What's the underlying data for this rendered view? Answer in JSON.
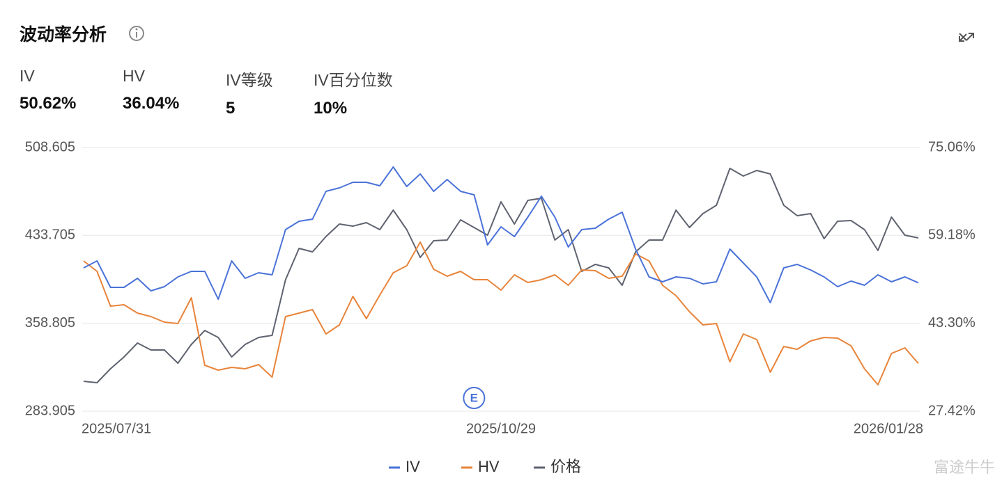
{
  "header": {
    "title": "波动率分析",
    "stats": [
      {
        "label": "IV",
        "value": "50.62%"
      },
      {
        "label": "HV",
        "value": "36.04%"
      },
      {
        "label": "IV等级",
        "value": "5"
      },
      {
        "label": "IV百分位数",
        "value": "10%"
      }
    ]
  },
  "watermark": "富途牛牛",
  "chart_data": {
    "type": "line",
    "categories": [
      "2025/07/31",
      null,
      null,
      null,
      null,
      null,
      null,
      null,
      null,
      null,
      null,
      null,
      null,
      null,
      null,
      null,
      null,
      null,
      null,
      null,
      null,
      null,
      null,
      null,
      null,
      null,
      null,
      null,
      null,
      null,
      null,
      "2025/10/29",
      null,
      null,
      null,
      null,
      null,
      null,
      null,
      null,
      null,
      null,
      null,
      null,
      null,
      null,
      null,
      null,
      null,
      null,
      null,
      null,
      null,
      null,
      null,
      null,
      null,
      null,
      null,
      null,
      null,
      null,
      "2026/01/28"
    ],
    "event_label": "E",
    "ylim": [
      283.905,
      508.605
    ],
    "yticks": [
      283.905,
      358.805,
      433.705,
      508.605
    ],
    "y2lim": [
      27.42,
      75.06
    ],
    "y2ticks": [
      {
        "value": 27.42,
        "label": "27.42%"
      },
      {
        "value": 43.3,
        "label": "43.30%"
      },
      {
        "value": 59.18,
        "label": "59.18%"
      },
      {
        "value": 75.06,
        "label": "75.06%"
      }
    ],
    "grid": true,
    "legend": "bottom",
    "series": [
      {
        "name": "IV",
        "color": "#4a72d8",
        "axis": "y2",
        "values": [
          53.31,
          54.57,
          49.79,
          49.79,
          51.43,
          49.17,
          49.92,
          51.68,
          52.69,
          52.69,
          47.66,
          54.57,
          51.43,
          52.43,
          52.06,
          60.23,
          61.74,
          62.11,
          67.14,
          67.77,
          68.78,
          68.78,
          68.15,
          71.54,
          68.02,
          70.28,
          67.14,
          69.28,
          67.14,
          66.51,
          57.46,
          60.73,
          58.97,
          62.49,
          66.26,
          62.49,
          57.09,
          60.23,
          60.48,
          62.11,
          63.37,
          56.71,
          51.68,
          50.8,
          51.68,
          51.43,
          50.42,
          50.8,
          56.71,
          54.19,
          51.68,
          47.03,
          53.31,
          53.94,
          52.94,
          51.68,
          49.92,
          50.93,
          50.17,
          52.06,
          50.8,
          51.68,
          50.62
        ]
      },
      {
        "name": "HV",
        "color": "#e8843a",
        "axis": "y2",
        "values": [
          54.57,
          52.69,
          46.4,
          46.65,
          45.14,
          44.52,
          43.51,
          43.26,
          47.91,
          35.72,
          34.84,
          35.34,
          35.09,
          35.84,
          33.58,
          44.52,
          45.14,
          45.77,
          41.37,
          43.01,
          48.16,
          44.14,
          48.41,
          52.43,
          53.69,
          57.97,
          53.06,
          51.81,
          52.69,
          51.18,
          51.18,
          49.29,
          52.06,
          50.67,
          51.18,
          52.06,
          50.17,
          52.94,
          52.81,
          51.43,
          51.81,
          55.83,
          54.57,
          50.17,
          48.29,
          45.4,
          43.01,
          43.26,
          36.34,
          41.37,
          40.37,
          34.46,
          39.11,
          38.61,
          40.12,
          40.74,
          40.62,
          39.24,
          35.09,
          32.2,
          37.85,
          38.86,
          36.04
        ]
      },
      {
        "name": "价格",
        "color": "#5f6370",
        "values": [
          309.4,
          308.22,
          320.07,
          330.15,
          342.01,
          336.08,
          336.08,
          324.81,
          340.82,
          352.68,
          346.75,
          330.15,
          340.82,
          346.75,
          348.53,
          395.96,
          422.64,
          419.67,
          432.72,
          443.39,
          441.61,
          444.58,
          438.65,
          455.25,
          438.65,
          414.93,
          429.16,
          429.76,
          446.95,
          440.43,
          433.91,
          462.36,
          443.39,
          463.55,
          465.33,
          429.76,
          438.65,
          403.08,
          409.01,
          406.04,
          391.22,
          419.67,
          429.76,
          429.76,
          455.25,
          440.43,
          452.29,
          459.4,
          490.82,
          484.3,
          489.04,
          486.08,
          459.4,
          450.51,
          452.29,
          430.94,
          445.77,
          446.36,
          438.65,
          420.86,
          449.32,
          433.91,
          431.54
        ]
      }
    ]
  }
}
